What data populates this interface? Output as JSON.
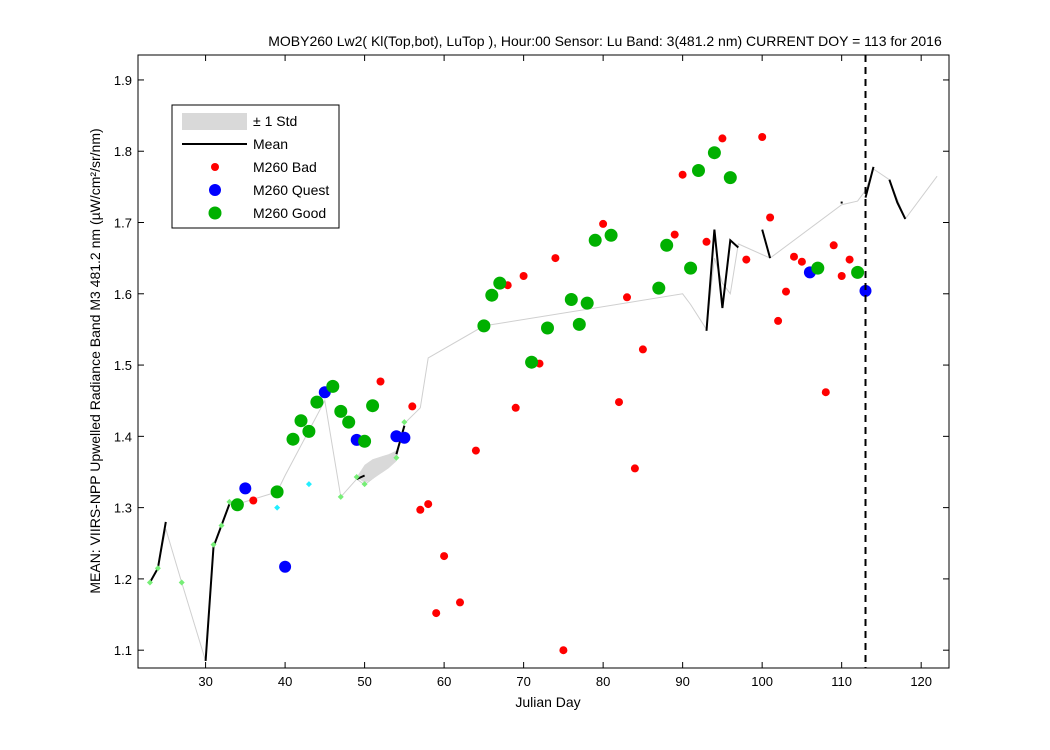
{
  "chart_data": {
    "type": "scatter",
    "title": "MOBY260   Lw2( Kl(Top,bot), LuTop ),   Hour:00 Sensor: Lu Band: 3(481.2 nm)   CURRENT DOY = 113 for 2016",
    "xlabel": "Julian Day",
    "ylabel": "MEAN: VIIRS-NPP Upwelled Radiance Band M3 481.2 nm (µW/cm²/sr/nm)",
    "xlim": [
      21.5,
      123.5
    ],
    "ylim": [
      1.075,
      1.935
    ],
    "xticks": [
      30,
      40,
      50,
      60,
      70,
      80,
      90,
      100,
      110,
      120
    ],
    "yticks": [
      1.1,
      1.2,
      1.3,
      1.4,
      1.5,
      1.6,
      1.7,
      1.8,
      1.9
    ],
    "grid": false,
    "legend_position": "top-left",
    "legend": [
      {
        "label": "± 1 Std",
        "kind": "band"
      },
      {
        "label": "Mean",
        "kind": "line"
      },
      {
        "label": "M260 Bad",
        "kind": "bad"
      },
      {
        "label": "M260 Quest",
        "kind": "quest"
      },
      {
        "label": "M260 Good",
        "kind": "good"
      }
    ],
    "current_doy": 113,
    "colors": {
      "bad": "#ff0000",
      "quest": "#0000ff",
      "good": "#00b000",
      "mean": "#000000",
      "std": "#d9d9d9",
      "grayline": "#cfcfcf",
      "small_green": "#77ee77",
      "small_cyan": "#22eeff"
    },
    "gray_line": [
      [
        23,
        1.195
      ],
      [
        24,
        1.215
      ],
      [
        25,
        1.27
      ],
      [
        27,
        1.195
      ],
      [
        30,
        1.085
      ],
      [
        31,
        1.245
      ],
      [
        32,
        1.275
      ],
      [
        33,
        1.305
      ],
      [
        34,
        1.305
      ],
      [
        39,
        1.322
      ],
      [
        40,
        1.345
      ],
      [
        45,
        1.45
      ],
      [
        47,
        1.315
      ],
      [
        49,
        1.34
      ],
      [
        50,
        1.332
      ],
      [
        53,
        1.358
      ],
      [
        54,
        1.37
      ],
      [
        55,
        1.418
      ],
      [
        57,
        1.44
      ],
      [
        58,
        1.51
      ],
      [
        65,
        1.555
      ],
      [
        90,
        1.6
      ],
      [
        91,
        1.585
      ],
      [
        93,
        1.55
      ],
      [
        94,
        1.65
      ],
      [
        95,
        1.615
      ],
      [
        96,
        1.6
      ],
      [
        97,
        1.67
      ],
      [
        101,
        1.65
      ],
      [
        110,
        1.725
      ],
      [
        112,
        1.73
      ],
      [
        113,
        1.745
      ],
      [
        114,
        1.775
      ],
      [
        116,
        1.76
      ],
      [
        118,
        1.705
      ],
      [
        122,
        1.765
      ]
    ],
    "std_band": {
      "x": [
        49,
        50,
        51,
        53,
        54
      ],
      "upper": [
        1.343,
        1.36,
        1.368,
        1.375,
        1.38
      ],
      "lower": [
        1.342,
        1.335,
        1.34,
        1.355,
        1.365
      ]
    },
    "mean_segments": [
      [
        [
          23,
          1.195
        ],
        [
          24,
          1.215
        ],
        [
          25,
          1.28
        ]
      ],
      [
        [
          30,
          1.085
        ],
        [
          31,
          1.245
        ],
        [
          32,
          1.275
        ],
        [
          33,
          1.305
        ]
      ],
      [
        [
          49,
          1.34
        ],
        [
          50,
          1.345
        ]
      ],
      [
        [
          54,
          1.375
        ],
        [
          55,
          1.415
        ]
      ],
      [
        [
          93,
          1.548
        ],
        [
          94,
          1.69
        ],
        [
          95,
          1.58
        ],
        [
          96,
          1.675
        ],
        [
          97,
          1.665
        ]
      ],
      [
        [
          100,
          1.69
        ],
        [
          101,
          1.65
        ]
      ],
      [
        [
          110,
          1.728
        ]
      ],
      [
        [
          113,
          1.735
        ],
        [
          114,
          1.778
        ]
      ],
      [
        [
          116,
          1.76
        ],
        [
          117,
          1.728
        ],
        [
          118,
          1.705
        ]
      ]
    ],
    "small_green_points": [
      [
        23,
        1.195
      ],
      [
        24,
        1.215
      ],
      [
        27,
        1.195
      ],
      [
        31,
        1.248
      ],
      [
        32,
        1.275
      ],
      [
        33,
        1.308
      ],
      [
        47,
        1.315
      ],
      [
        49,
        1.343
      ],
      [
        50,
        1.333
      ],
      [
        54,
        1.37
      ],
      [
        55,
        1.42
      ]
    ],
    "small_cyan_points": [
      [
        39,
        1.3
      ],
      [
        43,
        1.333
      ]
    ],
    "series": [
      {
        "name": "M260 Bad",
        "kind": "bad",
        "points": [
          [
            36,
            1.31
          ],
          [
            52,
            1.477
          ],
          [
            56,
            1.442
          ],
          [
            57,
            1.297
          ],
          [
            58,
            1.305
          ],
          [
            59,
            1.152
          ],
          [
            60,
            1.232
          ],
          [
            62,
            1.167
          ],
          [
            64,
            1.38
          ],
          [
            68,
            1.612
          ],
          [
            69,
            1.44
          ],
          [
            70,
            1.625
          ],
          [
            72,
            1.502
          ],
          [
            74,
            1.65
          ],
          [
            75,
            1.1
          ],
          [
            80,
            1.698
          ],
          [
            82,
            1.448
          ],
          [
            83,
            1.595
          ],
          [
            84,
            1.355
          ],
          [
            85,
            1.522
          ],
          [
            89,
            1.683
          ],
          [
            90,
            1.767
          ],
          [
            93,
            1.673
          ],
          [
            95,
            1.818
          ],
          [
            98,
            1.648
          ],
          [
            100,
            1.82
          ],
          [
            101,
            1.707
          ],
          [
            102,
            1.562
          ],
          [
            103,
            1.603
          ],
          [
            104,
            1.652
          ],
          [
            105,
            1.645
          ],
          [
            108,
            1.462
          ],
          [
            109,
            1.668
          ],
          [
            110,
            1.625
          ],
          [
            111,
            1.648
          ]
        ]
      },
      {
        "name": "M260 Quest",
        "kind": "quest",
        "points": [
          [
            35,
            1.327
          ],
          [
            40,
            1.217
          ],
          [
            45,
            1.462
          ],
          [
            49,
            1.395
          ],
          [
            54,
            1.4
          ],
          [
            55,
            1.398
          ],
          [
            106,
            1.63
          ],
          [
            113,
            1.604
          ]
        ]
      },
      {
        "name": "M260 Good",
        "kind": "good",
        "points": [
          [
            34,
            1.304
          ],
          [
            39,
            1.322
          ],
          [
            41,
            1.396
          ],
          [
            42,
            1.422
          ],
          [
            43,
            1.407
          ],
          [
            44,
            1.448
          ],
          [
            46,
            1.47
          ],
          [
            47,
            1.435
          ],
          [
            48,
            1.42
          ],
          [
            50,
            1.393
          ],
          [
            51,
            1.443
          ],
          [
            65,
            1.555
          ],
          [
            66,
            1.598
          ],
          [
            67,
            1.615
          ],
          [
            71,
            1.504
          ],
          [
            73,
            1.552
          ],
          [
            76,
            1.592
          ],
          [
            77,
            1.557
          ],
          [
            78,
            1.587
          ],
          [
            79,
            1.675
          ],
          [
            81,
            1.682
          ],
          [
            87,
            1.608
          ],
          [
            88,
            1.668
          ],
          [
            91,
            1.636
          ],
          [
            92,
            1.773
          ],
          [
            94,
            1.798
          ],
          [
            96,
            1.763
          ],
          [
            107,
            1.636
          ],
          [
            112,
            1.63
          ]
        ]
      }
    ]
  }
}
